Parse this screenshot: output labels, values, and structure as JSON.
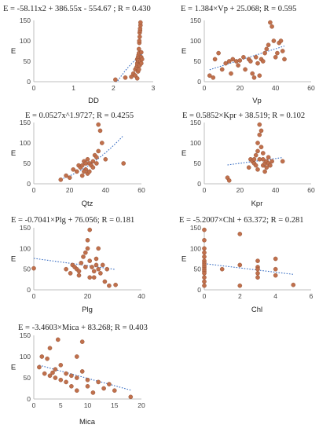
{
  "chart_data": [
    {
      "type": "scatter",
      "title": "E = -58.11x2 + 386.55x - 554.67 ; R = 0.430",
      "xlabel": "DD",
      "ylabel": "E",
      "xlim": [
        0,
        3
      ],
      "ylim": [
        0,
        150
      ],
      "xticks": [
        "0",
        "1",
        "2",
        "3"
      ],
      "yticks": [
        "0",
        "50",
        "100",
        "150"
      ],
      "trend": "poly2",
      "coef": [
        -58.11,
        386.55,
        -554.67
      ],
      "points": [
        [
          2.05,
          5
        ],
        [
          2.3,
          10
        ],
        [
          2.45,
          12
        ],
        [
          2.5,
          20
        ],
        [
          2.55,
          15
        ],
        [
          2.55,
          30
        ],
        [
          2.58,
          35
        ],
        [
          2.6,
          40
        ],
        [
          2.6,
          45
        ],
        [
          2.6,
          55
        ],
        [
          2.62,
          50
        ],
        [
          2.62,
          60
        ],
        [
          2.63,
          52
        ],
        [
          2.63,
          65
        ],
        [
          2.64,
          70
        ],
        [
          2.64,
          80
        ],
        [
          2.65,
          95
        ],
        [
          2.65,
          100
        ],
        [
          2.66,
          110
        ],
        [
          2.66,
          120
        ],
        [
          2.67,
          125
        ],
        [
          2.67,
          130
        ],
        [
          2.68,
          138
        ],
        [
          2.68,
          145
        ],
        [
          2.62,
          25
        ],
        [
          2.6,
          8
        ],
        [
          2.7,
          60
        ],
        [
          2.7,
          72
        ],
        [
          2.68,
          50
        ],
        [
          2.66,
          40
        ],
        [
          2.64,
          30
        ],
        [
          2.7,
          45
        ],
        [
          2.72,
          55
        ]
      ]
    },
    {
      "type": "scatter",
      "title": "E = 1.384×Vp + 25.068; R = 0.595",
      "xlabel": "Vp",
      "ylabel": "E",
      "xlim": [
        0,
        60
      ],
      "ylim": [
        0,
        150
      ],
      "xticks": [
        "0",
        "20",
        "40",
        "60"
      ],
      "yticks": [
        "0",
        "50",
        "100",
        "150"
      ],
      "trend": "linear",
      "coef": [
        1.384,
        25.068
      ],
      "points": [
        [
          3,
          15
        ],
        [
          5,
          10
        ],
        [
          6,
          55
        ],
        [
          8,
          70
        ],
        [
          10,
          30
        ],
        [
          12,
          45
        ],
        [
          14,
          50
        ],
        [
          15,
          20
        ],
        [
          16,
          55
        ],
        [
          18,
          50
        ],
        [
          19,
          40
        ],
        [
          20,
          52
        ],
        [
          22,
          60
        ],
        [
          23,
          30
        ],
        [
          25,
          55
        ],
        [
          26,
          50
        ],
        [
          27,
          20
        ],
        [
          28,
          10
        ],
        [
          29,
          60
        ],
        [
          30,
          45
        ],
        [
          31,
          15
        ],
        [
          32,
          55
        ],
        [
          33,
          50
        ],
        [
          34,
          70
        ],
        [
          35,
          80
        ],
        [
          36,
          90
        ],
        [
          37,
          145
        ],
        [
          38,
          135
        ],
        [
          39,
          100
        ],
        [
          40,
          60
        ],
        [
          41,
          70
        ],
        [
          42,
          95
        ],
        [
          43,
          100
        ],
        [
          44,
          75
        ],
        [
          45,
          55
        ]
      ]
    },
    {
      "type": "scatter",
      "title": "E = 0.0527x^1.9727; R = 0.4255",
      "xlabel": "Qtz",
      "ylabel": "E",
      "xlim": [
        0,
        60
      ],
      "ylim": [
        0,
        150
      ],
      "xticks": [
        "0",
        "20",
        "40",
        "60"
      ],
      "yticks": [
        "0",
        "50",
        "100",
        "150"
      ],
      "trend": "power",
      "coef": [
        0.0527,
        1.9727
      ],
      "points": [
        [
          15,
          10
        ],
        [
          18,
          20
        ],
        [
          20,
          15
        ],
        [
          22,
          35
        ],
        [
          24,
          30
        ],
        [
          25,
          45
        ],
        [
          26,
          40
        ],
        [
          27,
          20
        ],
        [
          28,
          55
        ],
        [
          29,
          35
        ],
        [
          30,
          60
        ],
        [
          31,
          50
        ],
        [
          32,
          45
        ],
        [
          33,
          55
        ],
        [
          34,
          70
        ],
        [
          35,
          65
        ],
        [
          36,
          145
        ],
        [
          37,
          130
        ],
        [
          38,
          100
        ],
        [
          36,
          80
        ],
        [
          35,
          50
        ],
        [
          30,
          25
        ],
        [
          28,
          30
        ],
        [
          40,
          60
        ],
        [
          50,
          50
        ],
        [
          33,
          40
        ],
        [
          31,
          30
        ],
        [
          29,
          50
        ],
        [
          27,
          45
        ]
      ]
    },
    {
      "type": "scatter",
      "title": "E = 0.5852×Kpr + 38.519; R = 0.102",
      "xlabel": "Kpr",
      "ylabel": "E",
      "xlim": [
        0,
        60
      ],
      "ylim": [
        0,
        150
      ],
      "xticks": [
        "0",
        "20",
        "40",
        "60"
      ],
      "yticks": [
        "0",
        "50",
        "100",
        "150"
      ],
      "trend": "linear",
      "coef": [
        0.5852,
        38.519
      ],
      "points": [
        [
          13,
          15
        ],
        [
          14,
          8
        ],
        [
          25,
          40
        ],
        [
          26,
          60
        ],
        [
          27,
          55
        ],
        [
          28,
          50
        ],
        [
          29,
          70
        ],
        [
          30,
          80
        ],
        [
          30,
          100
        ],
        [
          31,
          120
        ],
        [
          31,
          145
        ],
        [
          32,
          130
        ],
        [
          32,
          90
        ],
        [
          33,
          60
        ],
        [
          33,
          45
        ],
        [
          34,
          50
        ],
        [
          34,
          30
        ],
        [
          35,
          55
        ],
        [
          35,
          40
        ],
        [
          36,
          65
        ],
        [
          36,
          50
        ],
        [
          37,
          45
        ],
        [
          38,
          55
        ],
        [
          30,
          35
        ],
        [
          29,
          45
        ],
        [
          28,
          60
        ],
        [
          44,
          55
        ],
        [
          33,
          75
        ],
        [
          31,
          60
        ]
      ]
    },
    {
      "type": "scatter",
      "title": "E = -0.7041×Plg + 76.056; R = 0.181",
      "xlabel": "Plg",
      "ylabel": "E",
      "xlim": [
        0,
        50
      ],
      "ylim": [
        0,
        150
      ],
      "xticks": [
        "0",
        "20",
        "40"
      ],
      "yticks": [
        "0",
        "50",
        "100",
        "150"
      ],
      "trend": "linear",
      "coef": [
        -0.7041,
        76.056
      ],
      "points": [
        [
          0,
          52
        ],
        [
          15,
          50
        ],
        [
          17,
          40
        ],
        [
          18,
          60
        ],
        [
          19,
          55
        ],
        [
          20,
          50
        ],
        [
          21,
          45
        ],
        [
          22,
          65
        ],
        [
          23,
          80
        ],
        [
          24,
          90
        ],
        [
          25,
          100
        ],
        [
          25,
          120
        ],
        [
          26,
          145
        ],
        [
          26,
          70
        ],
        [
          27,
          55
        ],
        [
          28,
          45
        ],
        [
          28,
          30
        ],
        [
          29,
          60
        ],
        [
          30,
          50
        ],
        [
          30,
          100
        ],
        [
          31,
          40
        ],
        [
          32,
          60
        ],
        [
          33,
          20
        ],
        [
          34,
          50
        ],
        [
          35,
          10
        ],
        [
          38,
          12
        ],
        [
          21,
          35
        ],
        [
          24,
          55
        ],
        [
          26,
          30
        ],
        [
          29,
          75
        ]
      ]
    },
    {
      "type": "scatter",
      "title": "E = -5.2007×Chl + 63.372; R = 0.281",
      "xlabel": "Chl",
      "ylabel": "E",
      "xlim": [
        0,
        6
      ],
      "ylim": [
        0,
        150
      ],
      "xticks": [
        "0",
        "2",
        "4",
        "6"
      ],
      "yticks": [
        "0",
        "50",
        "100",
        "150"
      ],
      "trend": "linear",
      "coef": [
        -5.2007,
        63.372
      ],
      "points": [
        [
          0,
          145
        ],
        [
          0,
          120
        ],
        [
          0,
          100
        ],
        [
          0,
          90
        ],
        [
          0,
          80
        ],
        [
          0,
          70
        ],
        [
          0,
          65
        ],
        [
          0,
          60
        ],
        [
          0,
          55
        ],
        [
          0,
          50
        ],
        [
          0,
          45
        ],
        [
          0,
          40
        ],
        [
          0,
          30
        ],
        [
          0,
          20
        ],
        [
          0,
          10
        ],
        [
          1,
          50
        ],
        [
          2,
          135
        ],
        [
          2,
          60
        ],
        [
          2,
          10
        ],
        [
          3,
          70
        ],
        [
          3,
          55
        ],
        [
          3,
          50
        ],
        [
          3,
          40
        ],
        [
          3,
          30
        ],
        [
          4,
          75
        ],
        [
          4,
          50
        ],
        [
          4,
          35
        ],
        [
          5,
          12
        ]
      ]
    },
    {
      "type": "scatter",
      "title": "E = -3.4603×Mica + 83.268; R = 0.403",
      "xlabel": "Mica",
      "ylabel": "E",
      "xlim": [
        0,
        20
      ],
      "ylim": [
        0,
        150
      ],
      "xticks": [
        "0",
        "5",
        "10",
        "15",
        "20"
      ],
      "yticks": [
        "0",
        "50",
        "100",
        "150"
      ],
      "trend": "linear",
      "coef": [
        -3.4603,
        83.268
      ],
      "points": [
        [
          1,
          75
        ],
        [
          1.5,
          100
        ],
        [
          2,
          60
        ],
        [
          2.5,
          95
        ],
        [
          3,
          55
        ],
        [
          3,
          120
        ],
        [
          4,
          70
        ],
        [
          4,
          50
        ],
        [
          4.5,
          140
        ],
        [
          5,
          45
        ],
        [
          5,
          80
        ],
        [
          6,
          40
        ],
        [
          6,
          60
        ],
        [
          7,
          55
        ],
        [
          7,
          30
        ],
        [
          8,
          100
        ],
        [
          8,
          50
        ],
        [
          8,
          20
        ],
        [
          9,
          135
        ],
        [
          9,
          65
        ],
        [
          10,
          45
        ],
        [
          10,
          30
        ],
        [
          11,
          15
        ],
        [
          12,
          40
        ],
        [
          13,
          25
        ],
        [
          14,
          35
        ],
        [
          15,
          20
        ],
        [
          18,
          5
        ],
        [
          3.5,
          62
        ]
      ]
    }
  ]
}
